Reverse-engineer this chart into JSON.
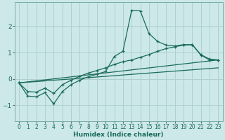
{
  "xlabel": "Humidex (Indice chaleur)",
  "bg_color": "#cce8e8",
  "grid_color": "#b0d0d0",
  "line_color": "#1a6b5a",
  "xlim": [
    -0.5,
    23.5
  ],
  "ylim": [
    -1.6,
    2.9
  ],
  "yticks": [
    -1,
    0,
    1,
    2
  ],
  "xticks": [
    0,
    1,
    2,
    3,
    4,
    5,
    6,
    7,
    8,
    9,
    10,
    11,
    12,
    13,
    14,
    15,
    16,
    17,
    18,
    19,
    20,
    21,
    22,
    23
  ],
  "line1_x": [
    0,
    1,
    2,
    3,
    4,
    5,
    6,
    7,
    8,
    9,
    10,
    11,
    12,
    13,
    14,
    15,
    16,
    17,
    18,
    19,
    20,
    21,
    22,
    23
  ],
  "line1_y": [
    -0.15,
    -0.65,
    -0.68,
    -0.52,
    -0.95,
    -0.48,
    -0.22,
    -0.05,
    0.08,
    0.18,
    0.28,
    0.85,
    1.05,
    2.6,
    2.58,
    1.72,
    1.42,
    1.28,
    1.25,
    1.3,
    1.3,
    0.9,
    0.72,
    0.72
  ],
  "line2_x": [
    0,
    1,
    2,
    3,
    4,
    5,
    6,
    7,
    8,
    9,
    10,
    11,
    12,
    13,
    14,
    15,
    16,
    17,
    18,
    19,
    20,
    21,
    22,
    23
  ],
  "line2_y": [
    -0.15,
    -0.48,
    -0.5,
    -0.35,
    -0.55,
    -0.22,
    -0.05,
    0.1,
    0.22,
    0.32,
    0.42,
    0.55,
    0.65,
    0.72,
    0.82,
    0.92,
    1.05,
    1.15,
    1.22,
    1.28,
    1.3,
    0.92,
    0.75,
    0.72
  ],
  "line3_x": [
    0,
    23
  ],
  "line3_y": [
    -0.15,
    0.72
  ],
  "line4_x": [
    0,
    23
  ],
  "line4_y": [
    -0.15,
    0.42
  ]
}
